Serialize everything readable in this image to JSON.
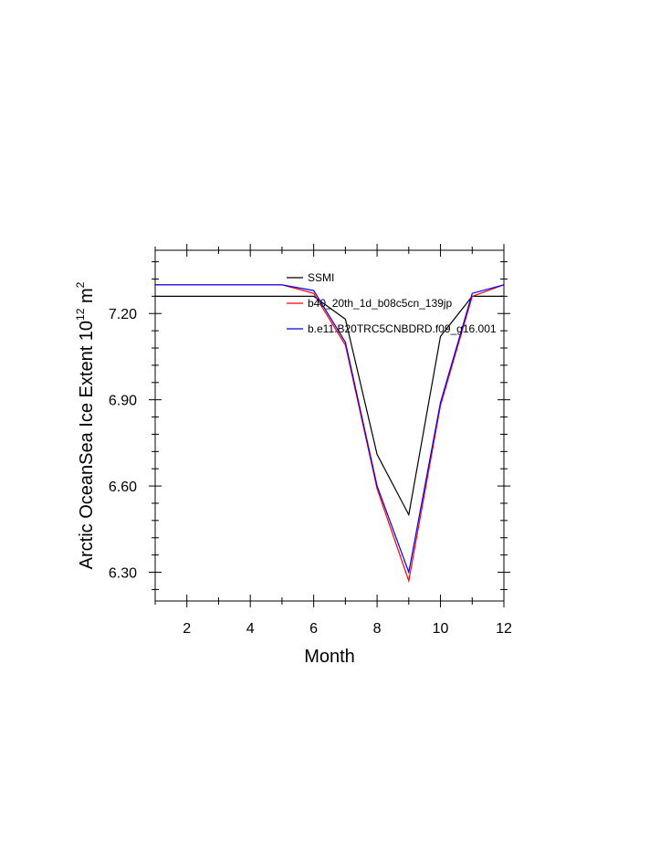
{
  "chart_data": {
    "type": "line",
    "title": "",
    "xlabel": "Month",
    "ylabel": {
      "prefix": "Arctic OceanSea Ice Extent 10",
      "superscript": "12",
      "suffix": " m",
      "suffix_superscript": "2"
    },
    "xlim": [
      1,
      12
    ],
    "ylim": [
      6.2,
      7.42
    ],
    "x_ticks": [
      2,
      4,
      6,
      8,
      10,
      12
    ],
    "x_tick_labels": [
      "2",
      "4",
      "6",
      "8",
      "10",
      "12"
    ],
    "y_ticks": [
      6.3,
      6.6,
      6.9,
      7.2
    ],
    "y_tick_labels": [
      "6.30",
      "6.60",
      "6.90",
      "7.20"
    ],
    "grid": false,
    "legend_position": "top-center",
    "x": [
      1,
      2,
      3,
      4,
      5,
      6,
      7,
      8,
      9,
      10,
      11,
      12
    ],
    "series": [
      {
        "name": "SSMI",
        "color": "#000000",
        "values": [
          7.26,
          7.26,
          7.26,
          7.26,
          7.26,
          7.26,
          7.18,
          6.71,
          6.5,
          7.12,
          7.26,
          7.26
        ]
      },
      {
        "name": "b40_20th_1d_b08c5cn_139jp",
        "color": "#ff0000",
        "values": [
          7.3,
          7.3,
          7.3,
          7.3,
          7.3,
          7.27,
          7.09,
          6.59,
          6.27,
          6.88,
          7.26,
          7.3
        ]
      },
      {
        "name": "b.e11.B20TRC5CNBDRD.f09_g16.001",
        "color": "#0000ff",
        "values": [
          7.3,
          7.3,
          7.3,
          7.3,
          7.3,
          7.28,
          7.1,
          6.6,
          6.3,
          6.89,
          7.27,
          7.3
        ]
      }
    ]
  }
}
